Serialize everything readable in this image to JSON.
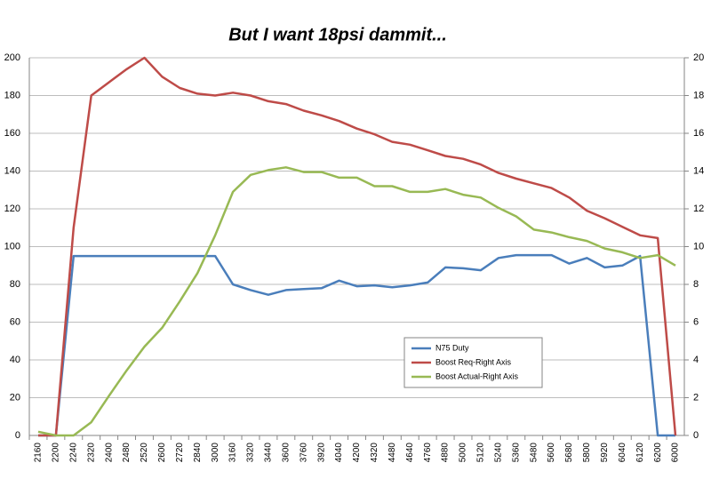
{
  "chart_data": {
    "type": "line",
    "title": "But I want 18psi dammit...",
    "categories": [
      "2160",
      "2200",
      "2240",
      "2320",
      "2400",
      "2480",
      "2520",
      "2600",
      "2720",
      "2840",
      "3000",
      "3160",
      "3320",
      "3440",
      "3600",
      "3760",
      "3920",
      "4040",
      "4200",
      "4320",
      "4480",
      "4640",
      "4760",
      "4880",
      "5000",
      "5120",
      "5240",
      "5360",
      "5480",
      "5600",
      "5680",
      "5800",
      "5920",
      "6040",
      "6120",
      "6200",
      "6000"
    ],
    "series": [
      {
        "name": "N75 Duty",
        "color": "#4a7ebb",
        "axis": "y",
        "values": [
          0,
          0,
          95,
          95,
          95,
          95,
          95,
          95,
          95,
          95,
          95,
          80,
          77,
          74.5,
          77,
          77.5,
          78,
          82,
          79,
          79.5,
          78.5,
          79.5,
          81,
          89,
          88.5,
          87.5,
          94,
          95.5,
          95.5,
          95.5,
          91,
          94,
          89,
          90,
          95,
          0,
          0
        ]
      },
      {
        "name": "Boost Req-Right Axis",
        "color": "#be4b48",
        "axis": "y2",
        "values": [
          0,
          0,
          11,
          18,
          18.7,
          19.4,
          20,
          19,
          18.4,
          18.1,
          18,
          18.15,
          18,
          17.7,
          17.55,
          17.2,
          16.95,
          16.65,
          16.25,
          15.95,
          15.55,
          15.4,
          15.1,
          14.8,
          14.65,
          14.35,
          13.9,
          13.6,
          13.35,
          13.1,
          12.6,
          11.9,
          11.5,
          11.05,
          10.6,
          10.45,
          0
        ]
      },
      {
        "name": "Boost Actual-Right Axis",
        "color": "#98b954",
        "axis": "y2",
        "values": [
          0.2,
          0,
          0,
          0.7,
          2.1,
          3.45,
          4.7,
          5.7,
          7.1,
          8.6,
          10.6,
          12.9,
          13.8,
          14.05,
          14.2,
          13.95,
          13.95,
          13.65,
          13.65,
          13.2,
          13.2,
          12.9,
          12.9,
          13.05,
          12.75,
          12.6,
          12.05,
          11.6,
          10.9,
          10.75,
          10.5,
          10.3,
          9.9,
          9.7,
          9.4,
          9.55,
          9.0
        ]
      }
    ],
    "ylim": [
      0,
      200
    ],
    "yticks": [
      0,
      20,
      40,
      60,
      80,
      100,
      120,
      140,
      160,
      180,
      200
    ],
    "y2lim": [
      0,
      20
    ],
    "y2ticks": [
      0,
      2,
      4,
      6,
      8,
      10,
      12,
      14,
      16,
      18,
      20
    ],
    "grid": true,
    "legend": "lower-right"
  }
}
